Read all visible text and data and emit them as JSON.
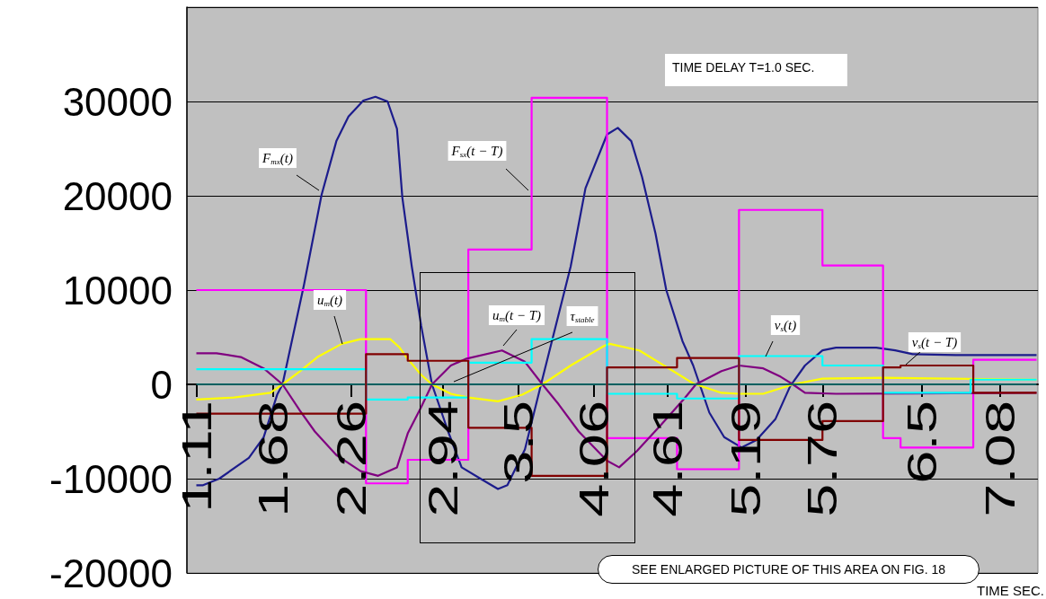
{
  "chart_data": {
    "type": "line",
    "xlabel": "TIME SEC.",
    "annotations": [
      "TIME DELAY T=1.0 SEC.",
      "SEE ENLARGED PICTURE OF THIS AREA ON FIG. 18"
    ],
    "xlim": [
      1.04,
      7.36
    ],
    "xticks": [
      1.11,
      1.68,
      2.26,
      2.94,
      3.5,
      4.06,
      4.61,
      5.19,
      5.76,
      6.5,
      7.08
    ],
    "ylim": [
      -20000,
      40000
    ],
    "yticks": [
      -20000,
      -10000,
      0,
      10000,
      20000,
      30000
    ],
    "grid": "y",
    "series": [
      {
        "name": "F$_{mx}$(t)",
        "type": "line",
        "color": "#1c1c8c",
        "x": [
          1.11,
          1.16,
          1.28,
          1.5,
          1.61,
          1.71,
          1.75,
          1.91,
          2.04,
          2.15,
          2.24,
          2.35,
          2.44,
          2.53,
          2.6,
          2.64,
          2.71,
          2.78,
          2.86,
          2.98,
          3.08,
          3.22,
          3.35,
          3.42,
          3.55,
          3.67,
          3.89,
          4.0,
          4.16,
          4.24,
          4.34,
          4.42,
          4.52,
          4.6,
          4.72,
          4.8,
          4.92,
          5.03,
          5.16,
          5.27,
          5.41,
          5.52,
          5.63,
          5.76,
          5.86,
          6.16,
          6.3,
          6.43,
          6.75,
          7.35
        ],
        "values": [
          -10700,
          -10700,
          -10000,
          -7800,
          -5600,
          -1100,
          0,
          10600,
          20100,
          25800,
          28400,
          30100,
          30500,
          30000,
          27100,
          19800,
          12500,
          6200,
          0,
          -5000,
          -8800,
          -10000,
          -11100,
          -10700,
          -6900,
          0,
          12500,
          20800,
          26500,
          27200,
          25800,
          22000,
          16000,
          10000,
          4600,
          2000,
          -3000,
          -5600,
          -6700,
          -5900,
          -3700,
          -200,
          2000,
          3600,
          3900,
          3900,
          3600,
          3200,
          3100,
          3100
        ]
      },
      {
        "name": "F$_{sx}$(t − T)",
        "type": "step",
        "color": "#ff00ff",
        "x": [
          1.11,
          2.37,
          2.68,
          3.13,
          3.6,
          4.16,
          4.68,
          5.14,
          5.76,
          6.21,
          6.34,
          6.88,
          7.35
        ],
        "values": [
          10000,
          -10500,
          -8000,
          14300,
          30400,
          -5700,
          -9000,
          18500,
          12600,
          -5700,
          -6700,
          2600,
          2600
        ]
      },
      {
        "name": "u$_{m}$(t)",
        "type": "line",
        "color": "#ffff00",
        "x": [
          1.11,
          1.39,
          1.66,
          1.75,
          1.88,
          2.01,
          2.19,
          2.33,
          2.55,
          2.62,
          2.68,
          2.78,
          2.86,
          3.0,
          3.13,
          3.35,
          3.53,
          3.68,
          3.89,
          4.14,
          4.18,
          4.4,
          4.56,
          4.8,
          5.01,
          5.14,
          5.32,
          5.54,
          5.76,
          6.21,
          7.35
        ],
        "values": [
          -1600,
          -1400,
          -900,
          0,
          1400,
          2900,
          4300,
          4800,
          4800,
          3900,
          2700,
          1000,
          0,
          -1000,
          -1400,
          -1800,
          -1100,
          0,
          2000,
          4100,
          4300,
          3600,
          2200,
          100,
          -900,
          -1000,
          -1000,
          0,
          600,
          700,
          500
        ]
      },
      {
        "name": "u$_{m}$(t − T)",
        "type": "line",
        "color": "#800080",
        "x": [
          1.11,
          1.26,
          1.44,
          1.61,
          1.75,
          1.88,
          1.99,
          2.15,
          2.33,
          2.46,
          2.6,
          2.68,
          2.78,
          2.86,
          3.0,
          3.11,
          3.38,
          3.55,
          3.68,
          3.8,
          3.95,
          4.16,
          4.25,
          4.38,
          4.56,
          4.74,
          4.82,
          5.01,
          5.14,
          5.32,
          5.45,
          5.54,
          5.63,
          5.86,
          7.35
        ],
        "values": [
          3300,
          3300,
          2900,
          1700,
          0,
          -2800,
          -5000,
          -7500,
          -9200,
          -9700,
          -8800,
          -5200,
          -2400,
          0,
          2000,
          2700,
          3600,
          2400,
          0,
          -2100,
          -5000,
          -8100,
          -8800,
          -7100,
          -4300,
          -1400,
          0,
          1400,
          2000,
          1700,
          800,
          0,
          -900,
          -1000,
          -900
        ]
      },
      {
        "name": "τ$_{stable}$",
        "type": "line",
        "color": "#006060",
        "x": [
          1.11,
          7.35
        ],
        "values": [
          0,
          0
        ]
      },
      {
        "name": "v$_{s}$(t)",
        "type": "step",
        "color": "#00ffff",
        "x": [
          1.11,
          2.37,
          2.68,
          3.13,
          3.6,
          4.16,
          4.68,
          5.14,
          5.76,
          6.21,
          6.86,
          7.35
        ],
        "values": [
          1600,
          -1600,
          -1400,
          2300,
          4800,
          -1000,
          -1500,
          3000,
          2000,
          -900,
          500,
          500
        ]
      },
      {
        "name": "v$_{s}$(t − T)",
        "type": "step",
        "color": "#800000",
        "x": [
          1.11,
          2.37,
          2.68,
          3.13,
          3.6,
          4.16,
          4.68,
          5.14,
          5.76,
          6.21,
          6.34,
          6.88,
          7.35
        ],
        "values": [
          -3100,
          3200,
          2500,
          -4600,
          -9700,
          1800,
          2800,
          -5900,
          -3900,
          1800,
          2000,
          -900,
          -900
        ]
      }
    ]
  }
}
